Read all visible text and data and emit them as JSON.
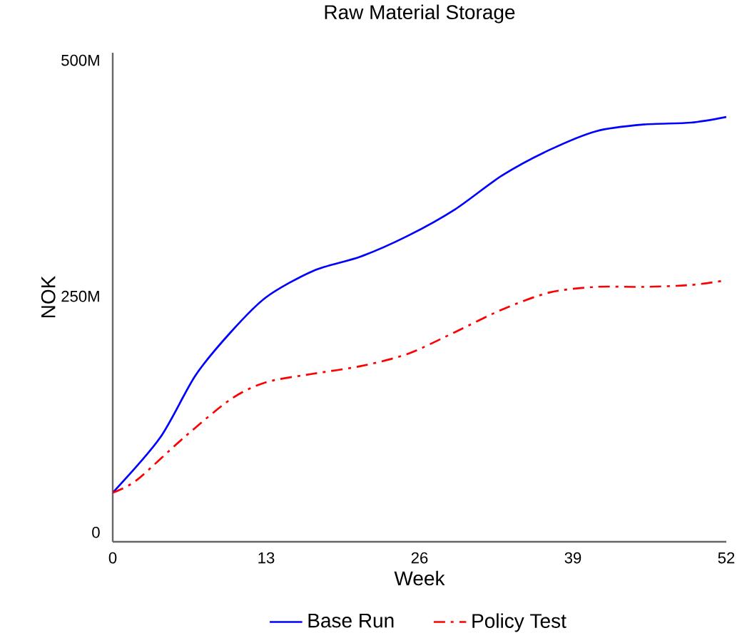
{
  "chart_data": {
    "type": "line",
    "title": "Raw Material Storage",
    "xlabel": "Week",
    "ylabel": "NOK",
    "x": [
      0,
      4,
      7,
      10,
      13,
      17,
      21,
      25,
      29,
      33,
      37,
      41,
      45,
      49,
      52
    ],
    "series": [
      {
        "name": "Base Run",
        "color": "#0000ff",
        "line_style": "solid",
        "values": [
          42000000,
          100000000,
          166000000,
          212000000,
          249000000,
          277000000,
          292000000,
          314000000,
          342000000,
          378000000,
          405000000,
          425000000,
          432000000,
          434000000,
          440000000
        ]
      },
      {
        "name": "Policy Test",
        "color": "#ff0000",
        "line_style": "dashdot",
        "x": [
          0,
          2,
          6,
          10,
          13,
          17,
          21,
          25,
          29,
          33,
          37,
          41,
          45,
          49,
          52
        ],
        "values": [
          42000000,
          55000000,
          100000000,
          141000000,
          159000000,
          168000000,
          176000000,
          189000000,
          212000000,
          236000000,
          254000000,
          260000000,
          260000000,
          262000000,
          267000000
        ]
      }
    ],
    "xlim": [
      0,
      52
    ],
    "xticks": [
      0,
      13,
      26,
      39,
      52
    ],
    "ylim": [
      -10000000,
      508000000
    ],
    "yticks": [
      0,
      {
        "value": 250000000,
        "label": "250M"
      },
      {
        "value": 500000000,
        "label": "500M"
      }
    ],
    "grid": false,
    "legend": "bottom",
    "marker": "none"
  }
}
